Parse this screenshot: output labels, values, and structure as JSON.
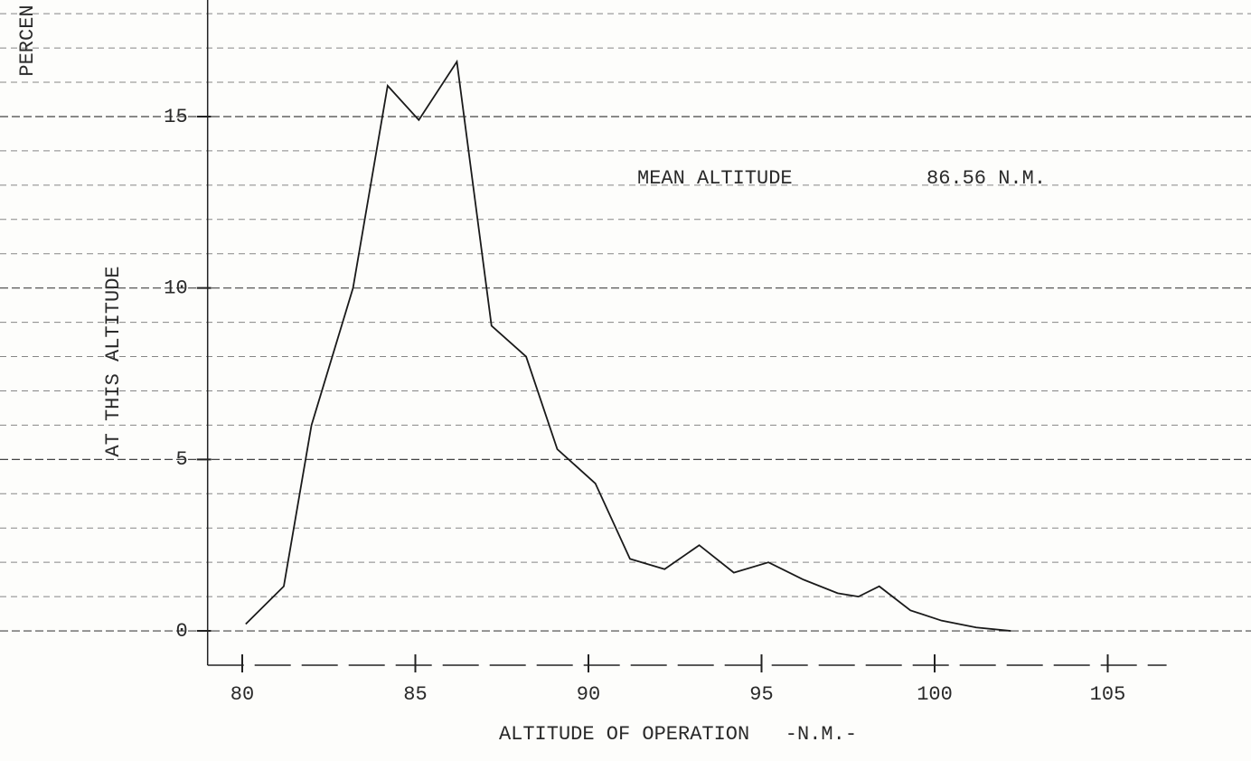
{
  "chart_data": {
    "type": "line",
    "title": "PERCEN",
    "y_label": "AT THIS ALTITUDE",
    "x_label": "ALTITUDE OF OPERATION   -N.M.-",
    "annotations": [
      "MEAN ALTITUDE",
      "86.56 N.M."
    ],
    "x": [
      80.1,
      81.2,
      82.0,
      83.2,
      84.2,
      85.1,
      86.2,
      87.2,
      88.2,
      89.1,
      90.2,
      91.2,
      92.2,
      93.2,
      94.2,
      95.2,
      96.2,
      97.2,
      97.8,
      98.4,
      99.3,
      100.2,
      101.2,
      102.2
    ],
    "series": [
      {
        "color": "#1a1a1a",
        "values": [
          0.2,
          1.3,
          6.0,
          10.0,
          15.9,
          14.9,
          16.6,
          8.9,
          8.0,
          5.3,
          4.3,
          2.1,
          1.8,
          2.5,
          1.7,
          2.0,
          1.5,
          1.1,
          1.0,
          1.3,
          0.6,
          0.3,
          0.1,
          0.0
        ]
      }
    ],
    "xlim": [
      79,
      106.7
    ],
    "xticks": [
      80,
      85,
      90,
      95,
      100,
      105
    ],
    "ylim": [
      -1,
      18.4
    ],
    "yticks": [
      0,
      5,
      10,
      15
    ],
    "yminorticks": [
      1,
      2,
      3,
      4,
      6,
      7,
      8,
      9,
      11,
      12,
      13,
      14,
      16,
      17,
      18
    ],
    "grid": true
  }
}
